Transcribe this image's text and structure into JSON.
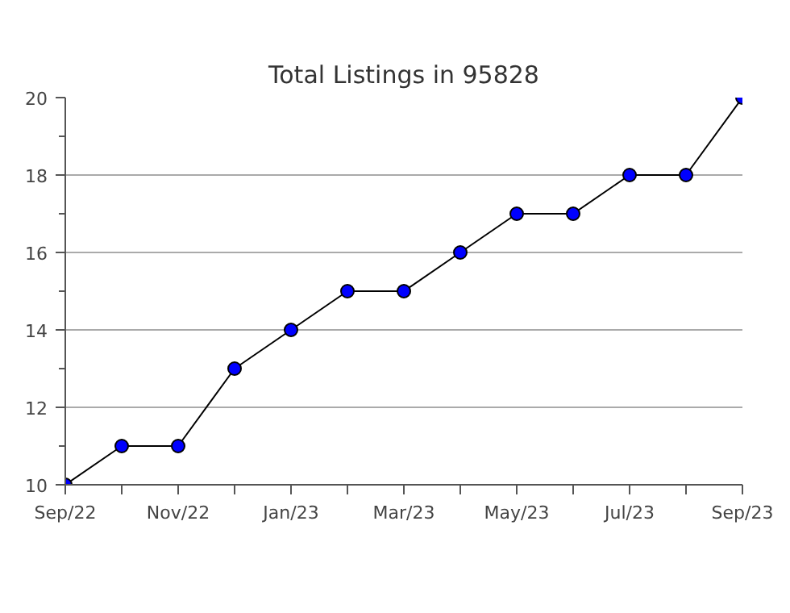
{
  "chart_data": {
    "type": "line",
    "title": "Total Listings in 95828",
    "categories": [
      "Sep/22",
      null,
      "Nov/22",
      null,
      "Jan/23",
      null,
      "Mar/23",
      null,
      "May/23",
      null,
      "Jul/23",
      null,
      "Sep/23"
    ],
    "series": [
      {
        "color": "#0000ff",
        "values": [
          10,
          11,
          11,
          13,
          14,
          15,
          15,
          16,
          17,
          17,
          18,
          18,
          20
        ]
      }
    ],
    "ylim": [
      10,
      20
    ],
    "yticks": [
      10,
      12,
      14,
      16,
      18,
      20
    ],
    "grid": "y",
    "marker": "circle",
    "line_style": "solid"
  }
}
